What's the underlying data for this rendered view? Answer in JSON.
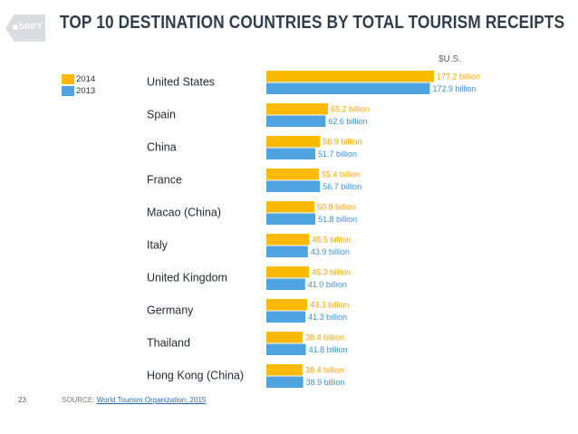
{
  "slide": {
    "logo_text": "DRIFT",
    "title": "TOP 10 DESTINATION COUNTRIES BY TOTAL TOURISM RECEIPTS",
    "unit": "$U.S.",
    "page_number": "23",
    "source_label": "SOURCE:",
    "source_link": "World Tourism Organization; 2015"
  },
  "colors": {
    "y2014": "#fbb900",
    "y2013": "#4ca3dd",
    "title": "#2f3e4d",
    "label_2014": "#f5a300",
    "label_2013": "#3a8fd0"
  },
  "chart_data": {
    "type": "bar",
    "orientation": "horizontal",
    "title": "TOP 10 DESTINATION COUNTRIES BY TOTAL TOURISM RECEIPTS",
    "unit": "$U.S.",
    "legend_placement": "top-left",
    "grid": false,
    "categories": [
      "United States",
      "Spain",
      "China",
      "France",
      "Macao (China)",
      "Italy",
      "United Kingdom",
      "Germany",
      "Thailand",
      "Hong Kong (China)"
    ],
    "series": [
      {
        "name": "2014",
        "color": "#fbb900",
        "values": [
          177.2,
          65.2,
          56.9,
          55.4,
          50.8,
          45.5,
          45.3,
          43.3,
          38.4,
          38.4
        ],
        "labels": [
          "177.2 billion",
          "65.2 billion",
          "56.9 billion",
          "55.4 billion",
          "50.8 billion",
          "45.5 billion",
          "45.3 billion",
          "43.3 billion",
          "38.4 billion",
          "38.4 billion"
        ]
      },
      {
        "name": "2013",
        "color": "#4ca3dd",
        "values": [
          172.9,
          62.6,
          51.7,
          56.7,
          51.8,
          43.9,
          41.0,
          41.3,
          41.8,
          38.9
        ],
        "labels": [
          "172.9 billion",
          "62.6 billion",
          "51.7 billion",
          "56.7 billion",
          "51.8 billion",
          "43.9 billion",
          "41.0 billion",
          "41.3 billion",
          "41.8 billion",
          "38.9 billion"
        ]
      }
    ]
  }
}
